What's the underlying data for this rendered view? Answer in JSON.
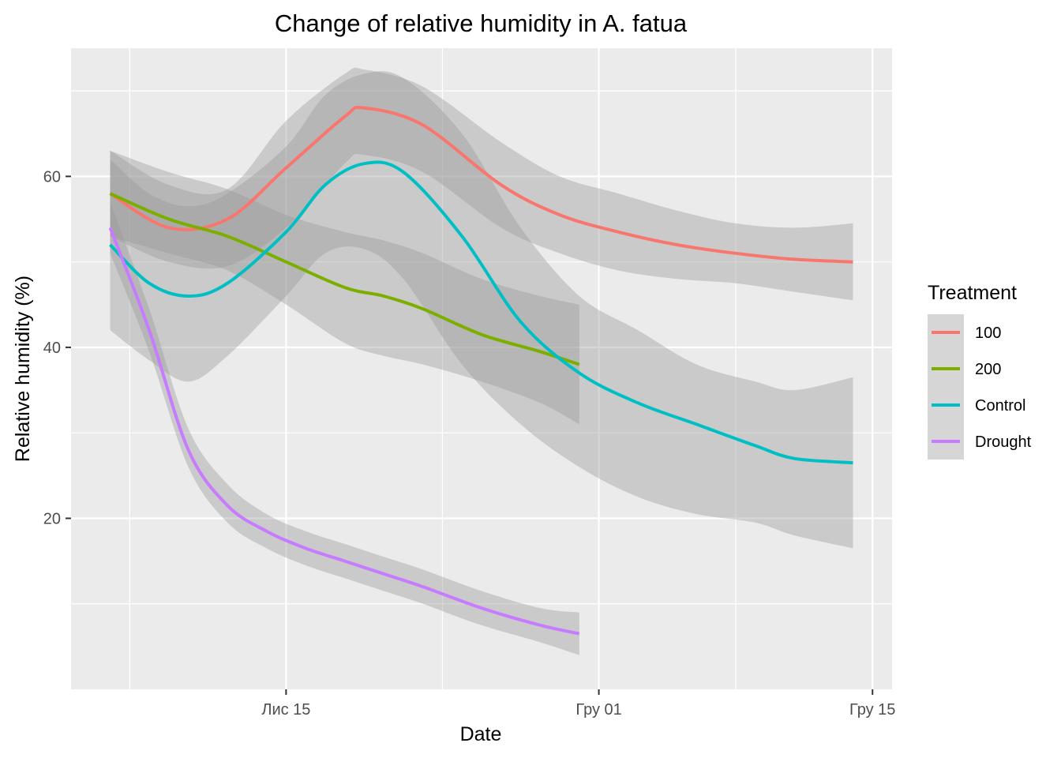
{
  "chart_data": {
    "type": "line",
    "title": "Change of relative humidity in A. fatua",
    "xlabel": "Date",
    "ylabel": "Relative humidity (%)",
    "x_ticks": [
      "Лис 15",
      "Гру 01",
      "Гру 15"
    ],
    "y_ticks": [
      20,
      40,
      60
    ],
    "xlim": [
      "2021-11-04",
      "2021-12-16"
    ],
    "ylim": [
      0,
      75
    ],
    "grid": true,
    "legend": {
      "title": "Treatment",
      "position": "right"
    },
    "series": [
      {
        "name": "100",
        "color": "#F8766D",
        "x": [
          "2021-11-06",
          "2021-11-09",
          "2021-11-12",
          "2021-11-15",
          "2021-11-18",
          "2021-11-19",
          "2021-11-22",
          "2021-11-26",
          "2021-11-29",
          "2021-12-02",
          "2021-12-05",
          "2021-12-08",
          "2021-12-11",
          "2021-12-14"
        ],
        "y": [
          58,
          54,
          55,
          61,
          67,
          68,
          66,
          59,
          55.5,
          53.5,
          52,
          51,
          50.3,
          50
        ],
        "lower": [
          53,
          50,
          49.5,
          54,
          61.5,
          62.5,
          60.5,
          54,
          51,
          49,
          48,
          47.5,
          46.5,
          45.5
        ],
        "upper": [
          63,
          59,
          58.5,
          66.5,
          72,
          72.5,
          70.5,
          64,
          60,
          58,
          56,
          54.5,
          54,
          54.5
        ]
      },
      {
        "name": "200",
        "color": "#7CAE00",
        "x": [
          "2021-11-06",
          "2021-11-09",
          "2021-11-12",
          "2021-11-15",
          "2021-11-18",
          "2021-11-20",
          "2021-11-22",
          "2021-11-25",
          "2021-11-28",
          "2021-11-30"
        ],
        "y": [
          58,
          55,
          53,
          50,
          47,
          46,
          44.5,
          41.5,
          39.5,
          38
        ],
        "lower": [
          53,
          51,
          49,
          45,
          40.5,
          39,
          38,
          36,
          33.5,
          31
        ],
        "upper": [
          63,
          60.5,
          58.5,
          55.5,
          53.5,
          52.5,
          51,
          48,
          46,
          45
        ]
      },
      {
        "name": "Control",
        "color": "#00BFC4",
        "x": [
          "2021-11-06",
          "2021-11-08",
          "2021-11-10",
          "2021-11-12",
          "2021-11-15",
          "2021-11-17",
          "2021-11-19",
          "2021-11-21",
          "2021-11-24",
          "2021-11-27",
          "2021-11-30",
          "2021-12-03",
          "2021-12-06",
          "2021-12-09",
          "2021-12-11",
          "2021-12-14"
        ],
        "y": [
          52,
          47.5,
          46,
          47.5,
          53.5,
          59,
          61.5,
          60.5,
          53,
          43,
          37,
          33.5,
          31,
          28.5,
          27,
          26.5
        ],
        "lower": [
          42,
          38.5,
          36,
          39,
          46,
          51,
          51.5,
          48,
          38,
          31,
          26,
          22.5,
          20.5,
          19.5,
          18,
          16.5
        ],
        "upper": [
          62,
          58,
          56.5,
          58,
          63.5,
          69.5,
          72,
          71.5,
          65,
          54,
          46,
          42,
          38,
          36,
          35,
          36.5
        ]
      },
      {
        "name": "Drought",
        "color": "#C77CFF",
        "x": [
          "2021-11-06",
          "2021-11-08",
          "2021-11-10",
          "2021-11-12",
          "2021-11-14",
          "2021-11-16",
          "2021-11-18",
          "2021-11-20",
          "2021-11-22",
          "2021-11-25",
          "2021-11-28",
          "2021-11-30"
        ],
        "y": [
          54,
          42,
          28,
          21.5,
          18.5,
          16.5,
          15,
          13.5,
          12,
          9.5,
          7.5,
          6.5
        ],
        "lower": [
          51,
          39.5,
          26,
          19.5,
          16.5,
          14.5,
          13,
          11.5,
          10,
          7.5,
          5.5,
          4
        ],
        "upper": [
          57,
          44.5,
          30.5,
          24,
          20.5,
          18.5,
          17,
          15.5,
          14,
          11.5,
          9.5,
          9
        ]
      }
    ]
  }
}
